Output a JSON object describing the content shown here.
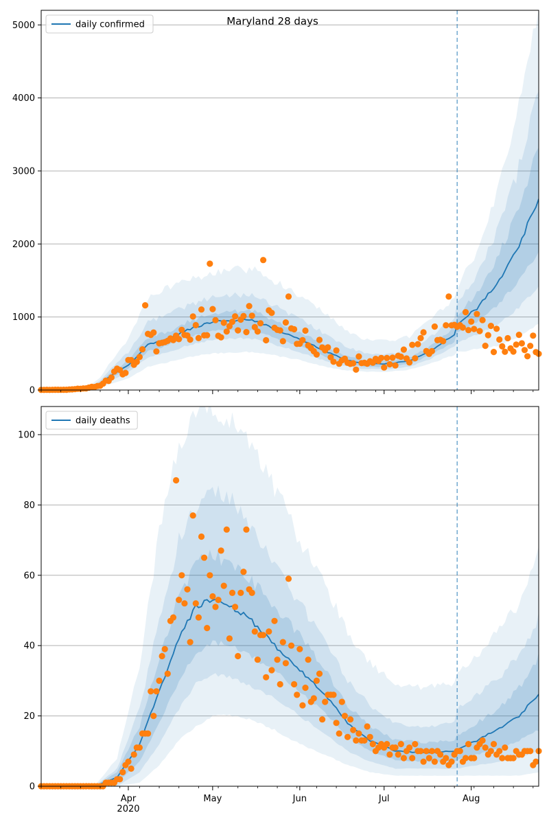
{
  "figure_title": "Maryland 28 days",
  "colors": {
    "model": "#1f77b4",
    "observed": "#ff7f0e",
    "band": "#1f77b4",
    "grid": "#b0b0b0",
    "forecast_line": "#1f77b4"
  },
  "chart_data": [
    {
      "type": "line",
      "name": "cases",
      "legend": "daily confirmed",
      "x_axis": "date",
      "x_range": [
        "2020-03-01",
        "2020-08-25"
      ],
      "x_tick_labels": [
        "Apr\n2020",
        "May",
        "Jun",
        "Jul",
        "Aug"
      ],
      "x_ticks": [
        "2020-04-01",
        "2020-05-01",
        "2020-06-01",
        "2020-07-01",
        "2020-08-01"
      ],
      "ylim": [
        0,
        5200
      ],
      "y_ticks": [
        0,
        1000,
        2000,
        3000,
        4000,
        5000
      ],
      "grid": "horizontal",
      "legend_position": "top-left",
      "forecast_start": "2020-07-27",
      "model_anchors": [
        [
          "2020-03-01",
          0
        ],
        [
          "2020-03-18",
          30
        ],
        [
          "2020-03-22",
          90
        ],
        [
          "2020-03-26",
          200
        ],
        [
          "2020-04-01",
          340
        ],
        [
          "2020-04-08",
          620
        ],
        [
          "2020-04-15",
          700
        ],
        [
          "2020-04-22",
          820
        ],
        [
          "2020-05-01",
          940
        ],
        [
          "2020-05-10",
          960
        ],
        [
          "2020-05-16",
          950
        ],
        [
          "2020-05-25",
          800
        ],
        [
          "2020-06-01",
          700
        ],
        [
          "2020-06-10",
          530
        ],
        [
          "2020-06-17",
          420
        ],
        [
          "2020-06-24",
          360
        ],
        [
          "2020-07-03",
          360
        ],
        [
          "2020-07-10",
          400
        ],
        [
          "2020-07-17",
          520
        ],
        [
          "2020-07-26",
          760
        ],
        [
          "2020-07-27",
          900
        ],
        [
          "2020-08-03",
          1120
        ],
        [
          "2020-08-10",
          1450
        ],
        [
          "2020-08-17",
          1900
        ],
        [
          "2020-08-25",
          2600
        ]
      ],
      "bands": [
        {
          "level": "outer",
          "lo": [
            0,
            10,
            35,
            85,
            160,
            320,
            380,
            450,
            500,
            520,
            520,
            460,
            410,
            320,
            270,
            250,
            250,
            280,
            360,
            480,
            520,
            560,
            600,
            700,
            900
          ],
          "hi": [
            0,
            55,
            170,
            400,
            700,
            1250,
            1400,
            1500,
            1600,
            1650,
            1640,
            1450,
            1300,
            1050,
            830,
            700,
            680,
            730,
            950,
            1250,
            1400,
            1900,
            2700,
            3800,
            5300
          ]
        },
        {
          "level": "mid",
          "lo": [
            0,
            18,
            55,
            130,
            240,
            450,
            520,
            610,
            690,
            710,
            700,
            600,
            520,
            400,
            330,
            290,
            290,
            320,
            420,
            590,
            650,
            760,
            900,
            1100,
            1400
          ],
          "hi": [
            0,
            45,
            130,
            300,
            520,
            930,
            1030,
            1150,
            1270,
            1300,
            1290,
            1110,
            970,
            770,
            600,
            500,
            490,
            540,
            710,
            1000,
            1180,
            1560,
            2150,
            2900,
            4200
          ]
        },
        {
          "level": "inner",
          "lo": [
            0,
            24,
            72,
            165,
            290,
            530,
            610,
            720,
            810,
            830,
            820,
            690,
            600,
            460,
            370,
            320,
            320,
            360,
            470,
            660,
            780,
            930,
            1150,
            1450,
            1900
          ],
          "hi": [
            0,
            36,
            108,
            240,
            400,
            720,
            800,
            930,
            1050,
            1080,
            1070,
            910,
            800,
            610,
            470,
            400,
            400,
            440,
            580,
            850,
            1020,
            1330,
            1780,
            2400,
            3300
          ]
        }
      ],
      "observed_anchors": [
        [
          "2020-03-01",
          2
        ],
        [
          "2020-03-10",
          5
        ],
        [
          "2020-03-17",
          25
        ],
        [
          "2020-03-22",
          60
        ],
        [
          "2020-03-27",
          200
        ],
        [
          "2020-04-02",
          380
        ],
        [
          "2020-04-09",
          650
        ],
        [
          "2020-04-16",
          740
        ],
        [
          "2020-04-23",
          830
        ],
        [
          "2020-05-01",
          950
        ],
        [
          "2020-05-10",
          960
        ],
        [
          "2020-05-18",
          950
        ],
        [
          "2020-05-26",
          800
        ],
        [
          "2020-06-03",
          760
        ],
        [
          "2020-06-10",
          560
        ],
        [
          "2020-06-17",
          380
        ],
        [
          "2020-06-24",
          360
        ],
        [
          "2020-07-03",
          380
        ],
        [
          "2020-07-10",
          480
        ],
        [
          "2020-07-17",
          680
        ],
        [
          "2020-07-24",
          850
        ],
        [
          "2020-08-01",
          900
        ],
        [
          "2020-08-08",
          720
        ],
        [
          "2020-08-15",
          600
        ],
        [
          "2020-08-25",
          580
        ]
      ],
      "observed_outliers": [
        [
          "2020-04-07",
          1160
        ],
        [
          "2020-04-30",
          1730
        ],
        [
          "2020-05-19",
          1780
        ],
        [
          "2020-05-28",
          1280
        ],
        [
          "2020-07-24",
          1280
        ]
      ]
    },
    {
      "type": "line",
      "name": "deaths",
      "legend": "daily deaths",
      "x_axis": "date",
      "x_range": [
        "2020-03-01",
        "2020-08-25"
      ],
      "x_tick_labels": [
        "Apr\n2020",
        "May",
        "Jun",
        "Jul",
        "Aug"
      ],
      "x_ticks": [
        "2020-04-01",
        "2020-05-01",
        "2020-06-01",
        "2020-07-01",
        "2020-08-01"
      ],
      "ylim": [
        0,
        108
      ],
      "y_ticks": [
        0,
        20,
        40,
        60,
        80,
        100
      ],
      "grid": "horizontal",
      "legend_position": "top-left",
      "forecast_start": "2020-07-27",
      "model_anchors": [
        [
          "2020-03-01",
          0
        ],
        [
          "2020-03-20",
          0
        ],
        [
          "2020-03-28",
          2.5
        ],
        [
          "2020-04-05",
          12
        ],
        [
          "2020-04-12",
          27
        ],
        [
          "2020-04-19",
          42
        ],
        [
          "2020-04-25",
          51
        ],
        [
          "2020-05-01",
          53.5
        ],
        [
          "2020-05-08",
          51
        ],
        [
          "2020-05-15",
          47
        ],
        [
          "2020-05-23",
          40
        ],
        [
          "2020-06-01",
          33
        ],
        [
          "2020-06-10",
          26
        ],
        [
          "2020-06-18",
          18
        ],
        [
          "2020-06-26",
          13
        ],
        [
          "2020-07-05",
          10
        ],
        [
          "2020-07-15",
          9.5
        ],
        [
          "2020-07-26",
          10
        ],
        [
          "2020-07-27",
          10.5
        ],
        [
          "2020-08-03",
          13
        ],
        [
          "2020-08-12",
          17
        ],
        [
          "2020-08-18",
          20
        ],
        [
          "2020-08-25",
          26
        ]
      ],
      "bands": [
        {
          "level": "outer",
          "lo": [
            0,
            0,
            0,
            1,
            6,
            13,
            17,
            20,
            20,
            19,
            16,
            12,
            9,
            6,
            4,
            3,
            3,
            3,
            3,
            3,
            3,
            3,
            4
          ],
          "hi": [
            0,
            0,
            8,
            34,
            72,
            98,
            106,
            107,
            105,
            96,
            85,
            70,
            57,
            44,
            35,
            29,
            28,
            29,
            32,
            37,
            46,
            52,
            66
          ]
        },
        {
          "level": "mid",
          "lo": [
            0,
            0,
            0,
            4,
            12,
            22,
            29,
            32,
            31,
            28,
            25,
            20,
            15,
            10,
            7,
            5,
            5,
            5,
            5,
            6,
            7,
            8,
            10
          ],
          "hi": [
            0,
            0,
            5,
            22,
            47,
            70,
            80,
            84,
            81,
            74,
            64,
            52,
            41,
            30,
            23,
            18,
            17,
            18,
            22,
            26,
            32,
            37,
            48
          ]
        },
        {
          "level": "inner",
          "lo": [
            0,
            0,
            1,
            7,
            18,
            30,
            38,
            41,
            40,
            37,
            33,
            27,
            21,
            14,
            10,
            7.5,
            7,
            7,
            7.5,
            9,
            11,
            13,
            16
          ],
          "hi": [
            0,
            0,
            4,
            17,
            36,
            54,
            63,
            66,
            63,
            58,
            51,
            43,
            33,
            23,
            17,
            13,
            12.5,
            13,
            14.5,
            18,
            23,
            28,
            37
          ]
        }
      ],
      "observed_anchors": [
        [
          "2020-03-01",
          0
        ],
        [
          "2020-03-20",
          0
        ],
        [
          "2020-03-27",
          1
        ],
        [
          "2020-04-03",
          8
        ],
        [
          "2020-04-10",
          25
        ],
        [
          "2020-04-17",
          45
        ],
        [
          "2020-04-24",
          52
        ],
        [
          "2020-05-01",
          54
        ],
        [
          "2020-05-08",
          50
        ],
        [
          "2020-05-15",
          46
        ],
        [
          "2020-05-22",
          40
        ],
        [
          "2020-05-29",
          33
        ],
        [
          "2020-06-05",
          28
        ],
        [
          "2020-06-12",
          22
        ],
        [
          "2020-06-19",
          16
        ],
        [
          "2020-06-26",
          13
        ],
        [
          "2020-07-03",
          11
        ],
        [
          "2020-07-10",
          10
        ],
        [
          "2020-07-17",
          9
        ],
        [
          "2020-07-24",
          8
        ],
        [
          "2020-08-01",
          10
        ],
        [
          "2020-08-08",
          11
        ],
        [
          "2020-08-15",
          9
        ],
        [
          "2020-08-25",
          8
        ]
      ],
      "observed_outliers": [
        [
          "2020-04-18",
          87
        ],
        [
          "2020-04-24",
          77
        ],
        [
          "2020-04-27",
          71
        ],
        [
          "2020-05-06",
          73
        ],
        [
          "2020-05-13",
          73
        ],
        [
          "2020-05-28",
          59
        ]
      ]
    }
  ]
}
